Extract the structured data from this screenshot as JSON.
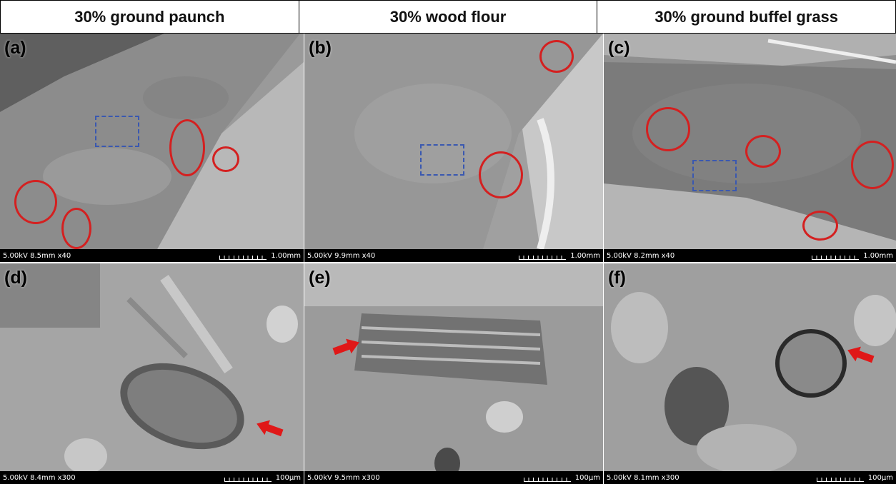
{
  "headers": [
    "30% ground paunch",
    "30% wood flour",
    "30% ground buffel grass"
  ],
  "panels": [
    {
      "label": "(a)",
      "info": "5.00kV 8.5mm x40",
      "scale": "1.00mm"
    },
    {
      "label": "(b)",
      "info": "5.00kV 9.9mm x40",
      "scale": "1.00mm"
    },
    {
      "label": "(c)",
      "info": "5.00kV 8.2mm x40",
      "scale": "1.00mm"
    },
    {
      "label": "(d)",
      "info": "5.00kV 8.4mm x300",
      "scale": "100µm"
    },
    {
      "label": "(e)",
      "info": "5.00kV 9.5mm x300",
      "scale": "100µm"
    },
    {
      "label": "(f)",
      "info": "5.00kV 8.1mm x300",
      "scale": "100µm"
    }
  ],
  "colors": {
    "circle": "#d42020",
    "dashed_box": "#3a58b0",
    "arrow": "#e01818"
  },
  "icon_names": [
    "red-circle-marker",
    "blue-dashed-box-marker",
    "red-arrow-icon"
  ]
}
